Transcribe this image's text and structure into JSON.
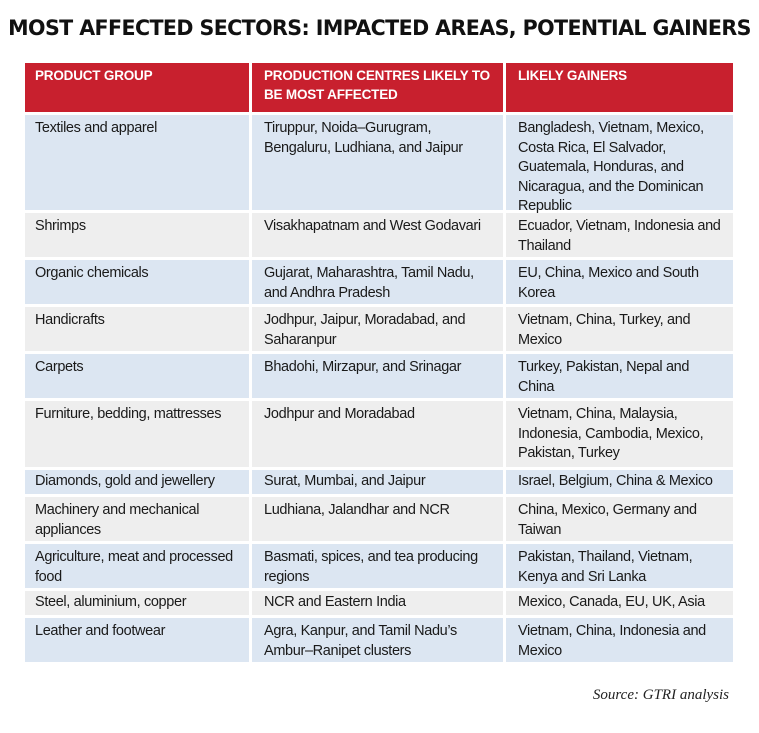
{
  "title": "MOST AFFECTED SECTORS: IMPACTED AREAS, POTENTIAL GAINERS",
  "columns": [
    "PRODUCT GROUP",
    "PRODUCTION CENTRES LIKELY TO BE MOST AFFECTED",
    "LIKELY GAINERS"
  ],
  "rows": [
    {
      "product": "Textiles and apparel",
      "centres": "Tiruppur, Noida–Gurugram, Bengaluru, Ludhiana, and Jaipur",
      "gainers": "Bangladesh, Vietnam, Mexico, Costa Rica, El Salvador, Guatemala, Honduras, and Nicaragua, and the Dominican Republic"
    },
    {
      "product": "Shrimps",
      "centres": "Visakhapatnam and West Godavari",
      "gainers": "Ecuador, Vietnam, Indonesia and Thailand"
    },
    {
      "product": "Organic chemicals",
      "centres": "Gujarat, Maharashtra, Tamil Nadu, and Andhra Pradesh",
      "gainers": "EU, China, Mexico and South Korea"
    },
    {
      "product": "Handicrafts",
      "centres": "Jodhpur, Jaipur, Moradabad, and Saharanpur",
      "gainers": "Vietnam, China, Turkey, and Mexico"
    },
    {
      "product": "Carpets",
      "centres": "Bhadohi, Mirzapur, and Srinagar",
      "gainers": "Turkey, Pakistan, Nepal and China"
    },
    {
      "product": "Furniture, bedding, mattresses",
      "centres": "Jodhpur and Moradabad",
      "gainers": "Vietnam, China, Malaysia, Indonesia, Cambodia, Mexico, Pakistan, Turkey"
    },
    {
      "product": "Diamonds, gold and jewellery",
      "centres": "Surat, Mumbai, and Jaipur",
      "gainers": "Israel, Belgium, China & Mexico"
    },
    {
      "product": "Machinery and mechanical appliances",
      "centres": "Ludhiana, Jalandhar and NCR",
      "gainers": "China, Mexico, Germany and Taiwan"
    },
    {
      "product": "Agriculture, meat and processed food",
      "centres": "Basmati, spices, and tea producing regions",
      "gainers": "Pakistan, Thailand, Vietnam, Kenya and Sri Lanka"
    },
    {
      "product": "Steel, aluminium, copper",
      "centres": "NCR and Eastern India",
      "gainers": "Mexico, Canada, EU, UK, Asia"
    },
    {
      "product": "Leather and footwear",
      "centres": "Agra, Kanpur, and Tamil Nadu’s Ambur–Ranipet clusters",
      "gainers": "Vietnam, China, Indonesia and Mexico"
    }
  ],
  "source": "Source: GTRI analysis",
  "colors": {
    "header_red": "#c8202e",
    "row_blue": "#dce6f2",
    "row_gray": "#eeeeee"
  }
}
